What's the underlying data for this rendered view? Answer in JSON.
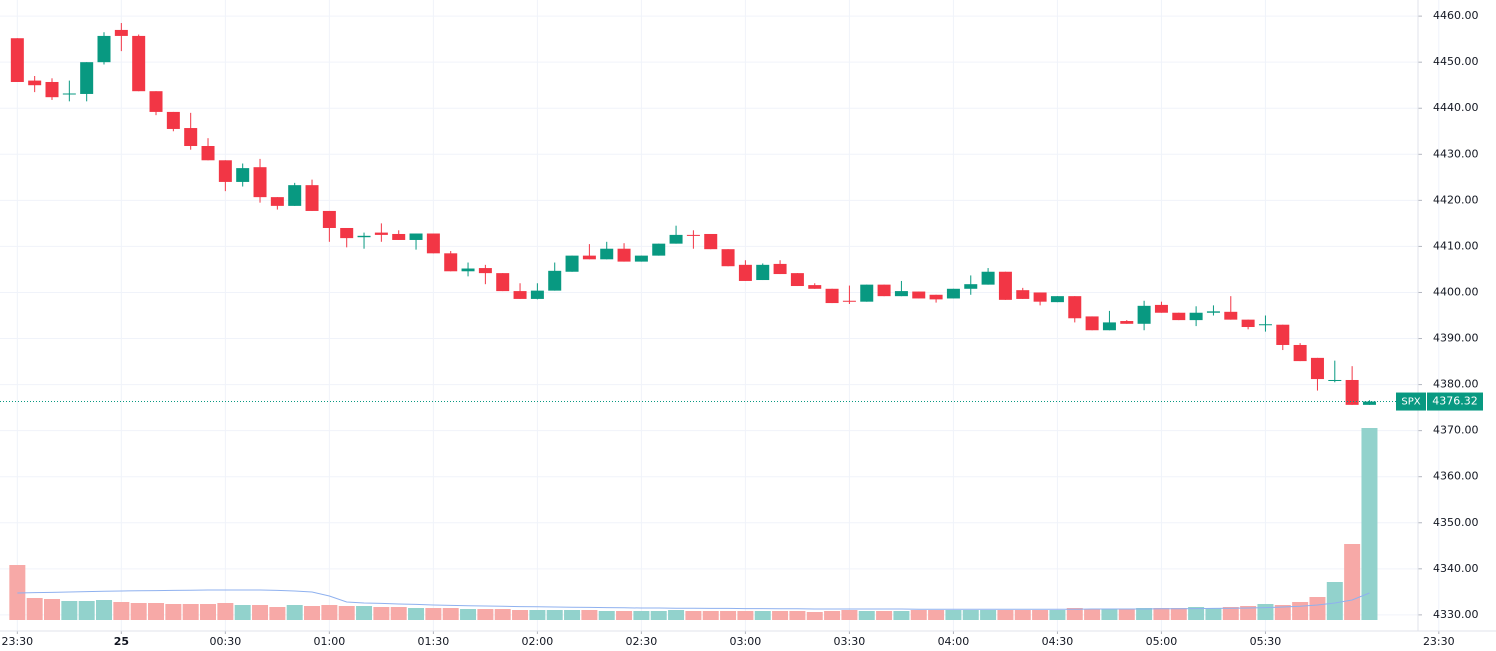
{
  "chart_data": {
    "type": "candlestick",
    "open": [
      4455.2,
      4446,
      4445.7,
      4443,
      4443.1,
      4450,
      4457,
      4455.7,
      4443.7,
      4439.2,
      4435.7,
      4431.8,
      4428.7,
      4424,
      4427.2,
      4420.7,
      4418.8,
      4423.3,
      4417.7,
      4414,
      4412,
      4413,
      4412.7,
      4411.4,
      4412.8,
      4408.5,
      4404.6,
      4405.3,
      4404.2,
      4400.3,
      4398.6,
      4400.4,
      4404.5,
      4408,
      4407.2,
      4409.5,
      4406.7,
      4408,
      4410.6,
      4412.5,
      4412.7,
      4409.4,
      4406,
      4402.7,
      4406.2,
      4404.2,
      4401.6,
      4400.8,
      4398.2,
      4398,
      4401.7,
      4399.2,
      4400.2,
      4399.5,
      4398.7,
      4400.8,
      4401.7,
      4404.5,
      4400.5,
      4400,
      4397.9,
      4399.2,
      4394.8,
      4391.8,
      4393.8,
      4393.2,
      4397.3,
      4395.6,
      4394,
      4395.6,
      4395.8,
      4394.1,
      4392.9,
      4393,
      4388.6,
      4385.8,
      4380.8,
      4381,
      4375.6
    ],
    "high": [
      4455.2,
      4447,
      4446.5,
      4446,
      4450,
      4456.5,
      4458.5,
      4456,
      4443.7,
      4439.2,
      4439,
      4433.5,
      4428.7,
      4428,
      4429,
      4420.7,
      4423.8,
      4424.5,
      4417.7,
      4414,
      4413,
      4415,
      4413.5,
      4412.8,
      4412.8,
      4409,
      4406.5,
      4406,
      4404.2,
      4402,
      4402,
      4406.5,
      4408,
      4410.5,
      4411,
      4410.7,
      4408,
      4410.6,
      4414.5,
      4413.5,
      4412.7,
      4409.4,
      4407,
      4406.3,
      4407,
      4404.2,
      4402,
      4400.8,
      4401.5,
      4401.7,
      4401.7,
      4402.5,
      4400.2,
      4399.5,
      4400.8,
      4403.7,
      4405.3,
      4404.5,
      4401,
      4400,
      4399.2,
      4399.2,
      4394.8,
      4396,
      4394,
      4398.2,
      4398,
      4395.6,
      4397,
      4397.2,
      4399.2,
      4394.1,
      4395,
      4393,
      4389,
      4385.8,
      4385.2,
      4384,
      4376.6
    ],
    "low": [
      4445.7,
      4443.5,
      4441.8,
      4441.5,
      4441.5,
      4449.5,
      4452.4,
      4443.7,
      4438.5,
      4435,
      4431,
      4428.7,
      4422,
      4423,
      4419.5,
      4418,
      4418.8,
      4417.7,
      4411,
      4409.8,
      4409.5,
      4411,
      4411.4,
      4409.3,
      4408.5,
      4404.6,
      4403.5,
      4401.8,
      4400.3,
      4398.6,
      4398.5,
      4400.4,
      4404.5,
      4407.2,
      4407.2,
      4406.7,
      4406.7,
      4408,
      4410.6,
      4409.5,
      4409.4,
      4405.7,
      4402.5,
      4402.7,
      4404,
      4401.4,
      4400.8,
      4397.7,
      4397.5,
      4398,
      4399.2,
      4399.2,
      4398.7,
      4397.8,
      4398.7,
      4399.5,
      4401.7,
      4398.4,
      4398.6,
      4397.2,
      4397.9,
      4393.5,
      4391.8,
      4391.8,
      4393.2,
      4391.8,
      4395.6,
      4394,
      4392.7,
      4395,
      4394.1,
      4392,
      4391.5,
      4387.5,
      4385.1,
      4378.7,
      4380.5,
      4375.6,
      4375.6
    ],
    "close": [
      4445.7,
      4445,
      4442.4,
      4443.2,
      4450,
      4455.7,
      4455.7,
      4443.7,
      4439.2,
      4435.5,
      4431.8,
      4428.7,
      4424,
      4427,
      4420.7,
      4418.8,
      4423.3,
      4417.7,
      4414,
      4411.8,
      4412.3,
      4412.5,
      4411.4,
      4412.8,
      4408.5,
      4404.6,
      4405.2,
      4404.2,
      4400.3,
      4398.6,
      4400.4,
      4404.7,
      4408,
      4407.2,
      4409.5,
      4406.7,
      4408,
      4410.6,
      4412.5,
      4412.3,
      4409.4,
      4405.7,
      4402.5,
      4406,
      4404,
      4401.4,
      4400.8,
      4397.7,
      4398,
      4401.7,
      4399.2,
      4400.3,
      4398.7,
      4398.5,
      4400.8,
      4401.8,
      4404.5,
      4398.4,
      4398.6,
      4398,
      4399.2,
      4394.4,
      4391.8,
      4393.5,
      4393.2,
      4397.1,
      4395.6,
      4394,
      4395.6,
      4395.9,
      4394.1,
      4392.5,
      4393.1,
      4388.6,
      4385.1,
      4381.2,
      4381,
      4375.6,
      4376.32
    ],
    "up_color": "#089981",
    "down_color": "#f23645",
    "volume": {
      "values": [
        27.5,
        11,
        10.5,
        9.5,
        9.5,
        10,
        9,
        8.5,
        8.5,
        8,
        8,
        8,
        8.5,
        7.5,
        7.5,
        6.5,
        7.5,
        7,
        7.5,
        7,
        7,
        6.5,
        6.5,
        6,
        6,
        6,
        5.5,
        5.5,
        5.5,
        5,
        5,
        5,
        5,
        5,
        4.5,
        4.5,
        4.5,
        4.5,
        5,
        4.5,
        4.5,
        4.5,
        4.5,
        4.5,
        4.5,
        4.5,
        4,
        4.5,
        5,
        4.5,
        4.5,
        4.5,
        5,
        5,
        5,
        5,
        5,
        5,
        5,
        5,
        5,
        6,
        5.5,
        5.5,
        5.5,
        6,
        6,
        6,
        6.5,
        6,
        6.5,
        7,
        8,
        7.5,
        9,
        11.5,
        19,
        38,
        96
      ],
      "up_color": "#92d2cc",
      "down_color": "#f7a9a7"
    },
    "volume_ma": {
      "values": [
        13.5,
        13.7,
        13.8,
        14,
        14.2,
        14.4,
        14.5,
        14.6,
        14.7,
        14.8,
        14.9,
        15,
        15,
        15,
        15,
        14.8,
        14.5,
        14,
        12,
        9,
        8.5,
        8.3,
        8,
        7.8,
        7.5,
        7.3,
        7.1,
        7,
        6.9,
        6.7,
        6.6,
        6.5,
        6.4,
        6.3,
        6.2,
        6.1,
        6,
        6,
        5.9,
        5.9,
        5.8,
        5.8,
        5.7,
        5.7,
        5.6,
        5.6,
        5.5,
        5.5,
        5.5,
        5.5,
        5.5,
        5.5,
        5.4,
        5.4,
        5.4,
        5.4,
        5.4,
        5.4,
        5.4,
        5.4,
        5.4,
        5.4,
        5.5,
        5.5,
        5.5,
        5.5,
        5.6,
        5.6,
        5.7,
        5.8,
        5.9,
        6,
        6.2,
        6.5,
        6.9,
        7.5,
        8.5,
        10,
        13.5
      ],
      "color": "#8fb1ef"
    },
    "y2lim": [
      0,
      100
    ],
    "ylim": [
      4326.5,
      4463.5
    ],
    "yticks": [
      {
        "value": 4460,
        "label": "4460.00"
      },
      {
        "value": 4450,
        "label": "4450.00"
      },
      {
        "value": 4440,
        "label": "4440.00"
      },
      {
        "value": 4430,
        "label": "4430.00"
      },
      {
        "value": 4420,
        "label": "4420.00"
      },
      {
        "value": 4410,
        "label": "4410.00"
      },
      {
        "value": 4400,
        "label": "4400.00"
      },
      {
        "value": 4390,
        "label": "4390.00"
      },
      {
        "value": 4380,
        "label": "4380.00"
      },
      {
        "value": 4370,
        "label": "4370.00"
      },
      {
        "value": 4360,
        "label": "4360.00"
      },
      {
        "value": 4350,
        "label": "4350.00"
      },
      {
        "value": 4340,
        "label": "4340.00"
      },
      {
        "value": 4330,
        "label": "4330.00"
      }
    ],
    "xlim": [
      -1,
      80.8
    ],
    "xticks": [
      {
        "value": 0,
        "label": "23:30"
      },
      {
        "value": 6,
        "label": "25"
      },
      {
        "value": 12,
        "label": "00:30"
      },
      {
        "value": 18,
        "label": "01:00"
      },
      {
        "value": 24,
        "label": "01:30"
      },
      {
        "value": 30,
        "label": "02:00"
      },
      {
        "value": 36,
        "label": "02:30"
      },
      {
        "value": 42,
        "label": "03:00"
      },
      {
        "value": 48,
        "label": "03:30"
      },
      {
        "value": 54,
        "label": "04:00"
      },
      {
        "value": 60,
        "label": "04:30"
      },
      {
        "value": 66,
        "label": "05:00"
      },
      {
        "value": 72,
        "label": "05:30"
      },
      {
        "value": 82,
        "label": "23:30"
      }
    ],
    "grid": true,
    "last_price": {
      "symbol": "SPX",
      "value": 4376.32,
      "color": "#089981"
    }
  }
}
